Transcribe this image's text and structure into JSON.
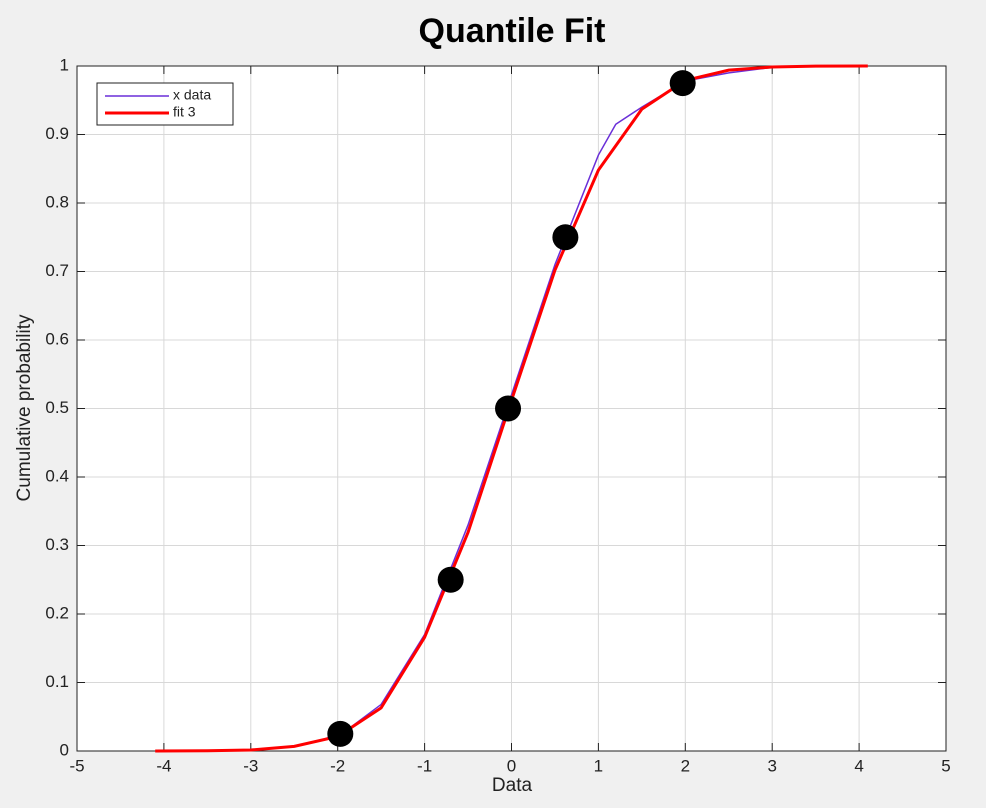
{
  "chart_data": {
    "type": "line",
    "title": "Quantile Fit",
    "x_label": "Data",
    "y_label": "Cumulative probability",
    "xlim": [
      -5,
      5
    ],
    "xticks": [
      -5,
      -4,
      -3,
      -2,
      -1,
      0,
      1,
      2,
      3,
      4,
      5
    ],
    "ylim": [
      0,
      1
    ],
    "yticks": [
      0,
      0.1,
      0.2,
      0.3,
      0.4,
      0.5,
      0.6,
      0.7,
      0.8,
      0.9,
      1
    ],
    "grid": true,
    "legend": "upper-left",
    "series": [
      {
        "name": "x data",
        "color": "#6a2fd8",
        "x": [
          -2.2,
          -1.9,
          -1.5,
          -1,
          -0.5,
          0,
          0.5,
          1,
          1.2,
          1.5,
          2,
          2.5,
          3
        ],
        "values": [
          0.015,
          0.03,
          0.068,
          0.17,
          0.33,
          0.52,
          0.71,
          0.87,
          0.915,
          0.94,
          0.978,
          0.99,
          0.998
        ]
      },
      {
        "name": "fit 3",
        "color": "#ff0000",
        "x": [
          -4.1,
          -3.5,
          -3,
          -2.5,
          -2,
          -1.5,
          -1,
          -0.5,
          0,
          0.5,
          1,
          1.5,
          2,
          2.5,
          3,
          3.5,
          4.1
        ],
        "values": [
          0,
          0.0003,
          0.0015,
          0.0068,
          0.0212,
          0.063,
          0.166,
          0.3192,
          0.512,
          0.702,
          0.848,
          0.937,
          0.979,
          0.994,
          0.9985,
          0.9998,
          1
        ]
      },
      {
        "type": "scatter",
        "color": "#000000",
        "x": [
          -1.97,
          -0.7,
          -0.04,
          0.62,
          1.97
        ],
        "values": [
          0.025,
          0.25,
          0.5,
          0.75,
          0.975
        ]
      }
    ]
  }
}
